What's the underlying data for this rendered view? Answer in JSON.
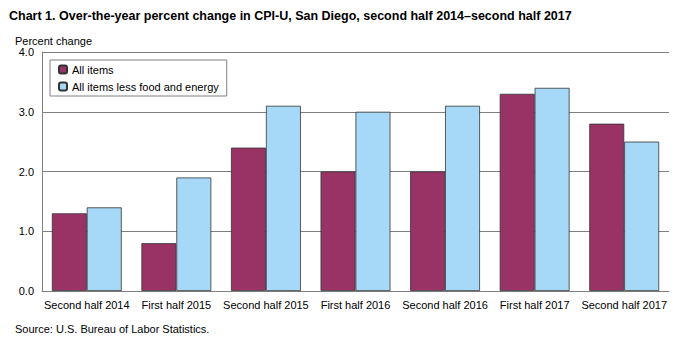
{
  "chart_data": {
    "type": "bar",
    "title": "Chart 1. Over-the-year percent change in CPI-U, San Diego, second half 2014–second half 2017",
    "y_label": "Percent change",
    "source": "Source: U.S. Bureau of Labor Statistics.",
    "categories": [
      "Second half 2014",
      "First half 2015",
      "Second half 2015",
      "First half 2016",
      "Second half 2016",
      "First half 2017",
      "Second half 2017"
    ],
    "series": [
      {
        "name": "All items",
        "color": "#993366",
        "values": [
          1.3,
          0.8,
          2.4,
          2.0,
          2.0,
          3.3,
          2.8
        ]
      },
      {
        "name": "All items less food and energy",
        "color": "#a6d9f7",
        "values": [
          1.4,
          1.9,
          3.1,
          3.0,
          3.1,
          3.4,
          2.5
        ]
      }
    ],
    "ylim": [
      0,
      4
    ],
    "yticks": [
      {
        "value": 0,
        "label": "0.0"
      },
      {
        "value": 1,
        "label": "1.0"
      },
      {
        "value": 2,
        "label": "2.0"
      },
      {
        "value": 3,
        "label": "3.0"
      },
      {
        "value": 4,
        "label": "4.0"
      }
    ],
    "grid": true,
    "legend": "upper left"
  }
}
